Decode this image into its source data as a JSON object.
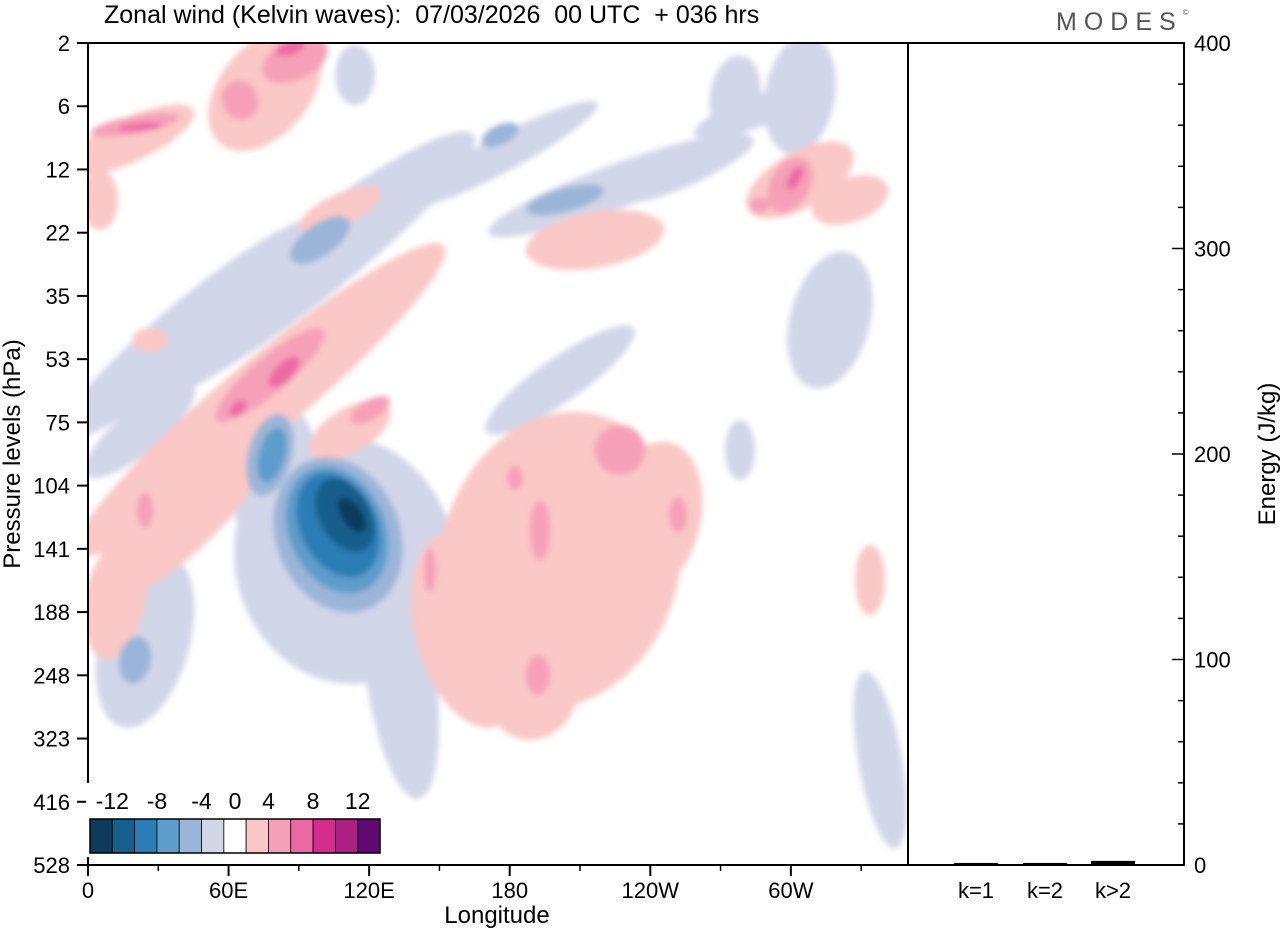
{
  "title": "Zonal wind (Kelvin waves):  07/03/2026  00 UTC  + 036 hrs",
  "brand": "MODES",
  "brand_mark": "©",
  "chart_data": [
    {
      "type": "heatmap",
      "title": "Zonal wind (Kelvin waves):  07/03/2026  00 UTC  + 036 hrs",
      "xlabel": "Longitude",
      "ylabel": "Pressure levels (hPa)",
      "x_ticks": [
        "0",
        "60E",
        "120E",
        "180",
        "120W",
        "60W"
      ],
      "x_tick_degrees": [
        0,
        60,
        120,
        180,
        240,
        300
      ],
      "xlim": [
        0,
        350
      ],
      "y_ticks": [
        "2",
        "6",
        "12",
        "22",
        "35",
        "53",
        "75",
        "104",
        "141",
        "188",
        "248",
        "323",
        "416",
        "528"
      ],
      "y_scale": "level index (log-pressure)",
      "colorbar": {
        "labels": [
          "-12",
          "-8",
          "-4",
          "0",
          "4",
          "8",
          "12"
        ],
        "levels": [
          -14,
          -12,
          -10,
          -8,
          -6,
          -4,
          -2,
          2,
          4,
          6,
          8,
          10,
          12,
          14
        ],
        "colors": [
          "#0e3a5c",
          "#175f8c",
          "#2c7db5",
          "#5d9ccb",
          "#9bb5d8",
          "#d2d6e9",
          "#ffffff",
          "#fac8c6",
          "#f5a0b8",
          "#ec6aa4",
          "#d42c8c",
          "#ad1f83",
          "#5e0a6e"
        ],
        "placement": "bottom-left"
      },
      "features": [
        {
          "type": "negative",
          "center_lon": 116,
          "center_level": "141",
          "peak": -14,
          "description": "strong easterly core"
        },
        {
          "type": "negative",
          "center_lon": 82,
          "center_level": "104",
          "peak": -8
        },
        {
          "type": "positive",
          "center_lon": 80,
          "center_level": "75",
          "peak": 8,
          "description": "tilted westerly band"
        },
        {
          "type": "positive",
          "center_lon": 195,
          "center_level": "141",
          "peak": 6,
          "description": "broad westerly region"
        },
        {
          "type": "positive",
          "center_lon": 300,
          "center_level": "12",
          "peak": 8
        }
      ]
    },
    {
      "type": "bar",
      "ylabel": "Energy (J/kg)",
      "categories": [
        "k=1",
        "k=2",
        "k>2"
      ],
      "values": [
        1,
        1,
        2
      ],
      "ylim": [
        0,
        400
      ],
      "y_ticks": [
        "0",
        "100",
        "200",
        "300",
        "400"
      ]
    }
  ]
}
